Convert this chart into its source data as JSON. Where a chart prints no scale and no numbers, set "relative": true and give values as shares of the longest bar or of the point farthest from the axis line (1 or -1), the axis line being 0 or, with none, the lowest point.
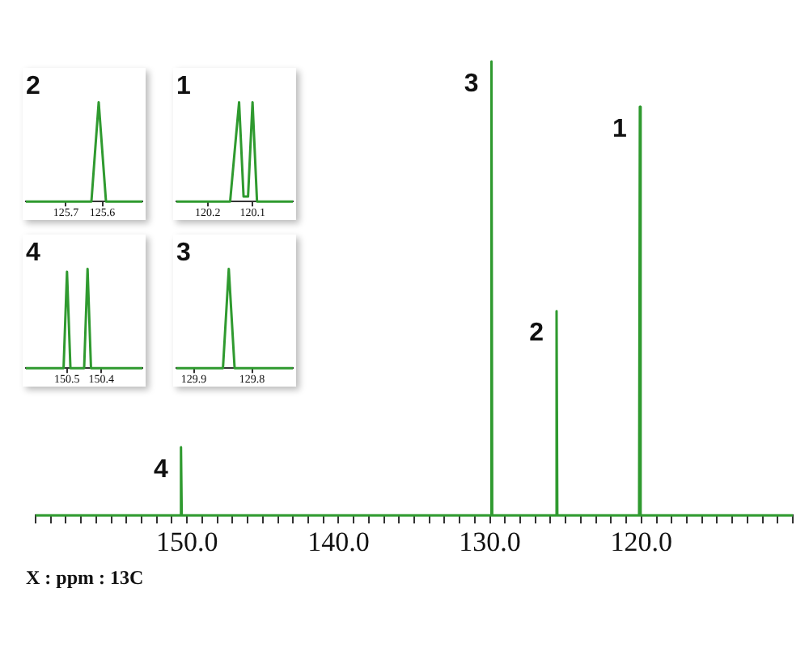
{
  "chart_data": [
    {
      "type": "line",
      "relative": true,
      "xlabel": "X : ppm : 13C",
      "xlim": [
        160,
        110
      ],
      "xticks": [
        {
          "value": 160,
          "label": null
        },
        {
          "value": 159,
          "label": null
        },
        {
          "value": 158,
          "label": null
        },
        {
          "value": 157,
          "label": null
        },
        {
          "value": 156,
          "label": null
        },
        {
          "value": 155,
          "label": null
        },
        {
          "value": 154,
          "label": null
        },
        {
          "value": 153,
          "label": null
        },
        {
          "value": 152,
          "label": null
        },
        {
          "value": 151,
          "label": null
        },
        {
          "value": 150,
          "label": "150.0"
        },
        {
          "value": 149,
          "label": null
        },
        {
          "value": 148,
          "label": null
        },
        {
          "value": 147,
          "label": null
        },
        {
          "value": 146,
          "label": null
        },
        {
          "value": 145,
          "label": null
        },
        {
          "value": 144,
          "label": null
        },
        {
          "value": 143,
          "label": null
        },
        {
          "value": 142,
          "label": null
        },
        {
          "value": 141,
          "label": null
        },
        {
          "value": 140,
          "label": "140.0"
        },
        {
          "value": 139,
          "label": null
        },
        {
          "value": 138,
          "label": null
        },
        {
          "value": 137,
          "label": null
        },
        {
          "value": 136,
          "label": null
        },
        {
          "value": 135,
          "label": null
        },
        {
          "value": 134,
          "label": null
        },
        {
          "value": 133,
          "label": null
        },
        {
          "value": 132,
          "label": null
        },
        {
          "value": 131,
          "label": null
        },
        {
          "value": 130,
          "label": "130.0"
        },
        {
          "value": 129,
          "label": null
        },
        {
          "value": 128,
          "label": null
        },
        {
          "value": 127,
          "label": null
        },
        {
          "value": 126,
          "label": null
        },
        {
          "value": 125,
          "label": null
        },
        {
          "value": 124,
          "label": null
        },
        {
          "value": 123,
          "label": null
        },
        {
          "value": 122,
          "label": null
        },
        {
          "value": 121,
          "label": null
        },
        {
          "value": 120,
          "label": "120.0"
        },
        {
          "value": 119,
          "label": null
        },
        {
          "value": 118,
          "label": null
        },
        {
          "value": 117,
          "label": null
        },
        {
          "value": 116,
          "label": null
        },
        {
          "value": 115,
          "label": null
        },
        {
          "value": 114,
          "label": null
        },
        {
          "value": 113,
          "label": null
        },
        {
          "value": 112,
          "label": null
        },
        {
          "value": 111,
          "label": null
        },
        {
          "value": 110,
          "label": null
        }
      ],
      "series": [
        {
          "color": "#2f9a2f",
          "x": [
            160,
            150.45,
            150.4,
            150.35,
            129.95,
            129.9,
            129.85,
            125.65,
            125.6,
            125.55,
            120.15,
            120.1,
            120.05,
            110
          ],
          "values": [
            0,
            0,
            0.15,
            0,
            0,
            1,
            0,
            0,
            0.45,
            0,
            0,
            0.9,
            0,
            0
          ]
        }
      ],
      "annotations": [
        {
          "text": "4",
          "x": 150.4,
          "y": 0.15
        },
        {
          "text": "3",
          "x": 129.9,
          "y": 1
        },
        {
          "text": "2",
          "x": 125.6,
          "y": 0.45
        },
        {
          "text": "1",
          "x": 120.1,
          "y": 0.9
        }
      ]
    },
    {
      "type": "line",
      "relative": true,
      "title": "2",
      "xlim": [
        125.81,
        125.49
      ],
      "xticks": [
        {
          "value": 125.7,
          "label": "125.7"
        },
        {
          "value": 125.6,
          "label": "125.6"
        }
      ],
      "series": [
        {
          "color": "#2f9a2f",
          "x": [
            125.81,
            125.63,
            125.61,
            125.59,
            125.49
          ],
          "values": [
            0,
            0,
            1,
            0,
            0
          ]
        }
      ]
    },
    {
      "type": "line",
      "relative": true,
      "title": "1",
      "xlim": [
        120.27,
        120.01
      ],
      "xticks": [
        {
          "value": 120.2,
          "label": "120.2"
        },
        {
          "value": 120.1,
          "label": "120.1"
        }
      ],
      "series": [
        {
          "color": "#2f9a2f",
          "x": [
            120.27,
            120.15,
            120.13,
            120.12,
            120.11,
            120.1,
            120.09,
            120.01
          ],
          "values": [
            0,
            0,
            1,
            0.05,
            0.05,
            1,
            0,
            0
          ]
        }
      ]
    },
    {
      "type": "line",
      "relative": true,
      "title": "4",
      "xlim": [
        150.62,
        150.28
      ],
      "xticks": [
        {
          "value": 150.5,
          "label": "150.5"
        },
        {
          "value": 150.4,
          "label": "150.4"
        }
      ],
      "series": [
        {
          "color": "#2f9a2f",
          "x": [
            150.62,
            150.51,
            150.5,
            150.49,
            150.45,
            150.44,
            150.43,
            150.28
          ],
          "values": [
            0,
            0,
            0.97,
            0,
            0,
            1,
            0,
            0
          ]
        }
      ]
    },
    {
      "type": "line",
      "relative": true,
      "title": "3",
      "xlim": [
        129.93,
        129.73
      ],
      "xticks": [
        {
          "value": 129.9,
          "label": "129.9"
        },
        {
          "value": 129.8,
          "label": "129.8"
        }
      ],
      "series": [
        {
          "color": "#2f9a2f",
          "x": [
            129.93,
            129.85,
            129.84,
            129.83,
            129.73
          ],
          "values": [
            0,
            0,
            1,
            0,
            0
          ]
        }
      ]
    }
  ]
}
